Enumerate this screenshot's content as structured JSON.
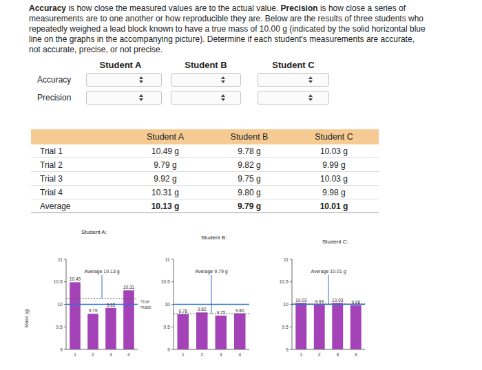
{
  "intro": {
    "lines": [
      [
        {
          "text": "Accuracy",
          "bold": true
        },
        {
          "text": " is how close the measured values are to the actual value. "
        },
        {
          "text": "Precision",
          "bold": true
        },
        {
          "text": " is how close a series of"
        }
      ],
      [
        {
          "text": "measurements are to one another or how reproducible they are. Below are the results of three students who"
        }
      ],
      [
        {
          "text": "repeatedly weighed a lead block known to have a true mass of 10.00 g (indicated by the solid horizontal blue"
        }
      ],
      [
        {
          "text": "line on the graphs in the accompanying picture). Determine if each student's measurements are accurate,"
        }
      ],
      [
        {
          "text": "not accurate, precise, or not precise."
        }
      ]
    ]
  },
  "form": {
    "columns": [
      "Student A",
      "Student B",
      "Student C"
    ],
    "rows": [
      "Accuracy",
      "Precision"
    ]
  },
  "table": {
    "header": [
      "Student A",
      "Student B",
      "Student C"
    ],
    "rows": [
      [
        "Trial 1",
        "10.49 g",
        "9.78 g",
        "10.03 g"
      ],
      [
        "Trial 2",
        "9.79 g",
        "9.82 g",
        "9.99 g"
      ],
      [
        "Trial 3",
        "9.92 g",
        "9.75 g",
        "10.03 g"
      ],
      [
        "Trial 4",
        "10.31 g",
        "9.80 g",
        "9.98 g"
      ],
      [
        "Average",
        "10.13 g",
        "9.79 g",
        "10.01 g"
      ]
    ]
  },
  "chart_data": [
    {
      "type": "bar",
      "title": "Student A:",
      "y_label": "Mass (g)",
      "categories": [
        "1",
        "2",
        "3",
        "4"
      ],
      "values": [
        10.49,
        9.79,
        9.92,
        10.31
      ],
      "value_labels": [
        "10.49",
        "9.79",
        "9.92",
        "10.31"
      ],
      "data_labels": true,
      "color": "#a443b8",
      "ylim": [
        9,
        11
      ],
      "yticks": [
        9,
        9.5,
        10,
        10.5,
        11
      ],
      "average": {
        "value": 10.13,
        "label": "Average 10.13 g"
      },
      "true_mass": {
        "value": 10,
        "label": "True mass",
        "color": "#2f6fd6"
      }
    },
    {
      "type": "bar",
      "title": "Student B:",
      "categories": [
        "1",
        "2",
        "3",
        "4"
      ],
      "values": [
        9.78,
        9.82,
        9.75,
        9.8
      ],
      "value_labels": [
        "9.78",
        "9.82",
        "9.75",
        "9.80"
      ],
      "data_labels": true,
      "color": "#a443b8",
      "ylim": [
        9,
        11
      ],
      "yticks": [
        9,
        9.5,
        10,
        10.5,
        11
      ],
      "average": {
        "value": 9.79,
        "label": "Average 9.79 g"
      },
      "true_mass": {
        "value": 10,
        "color": "#2f6fd6"
      }
    },
    {
      "type": "bar",
      "title": "Student C:",
      "categories": [
        "1",
        "2",
        "3",
        "4"
      ],
      "values": [
        10.03,
        9.99,
        10.03,
        9.98
      ],
      "value_labels": [
        "10.03",
        "9.99",
        "10.03",
        "9.98"
      ],
      "data_labels": true,
      "color": "#a443b8",
      "ylim": [
        9,
        11
      ],
      "yticks": [
        9,
        9.5,
        10,
        10.5,
        11
      ],
      "average": {
        "value": 10.01,
        "label": "Average 10.01 g"
      },
      "true_mass": {
        "value": 10,
        "color": "#2f6fd6"
      }
    }
  ]
}
